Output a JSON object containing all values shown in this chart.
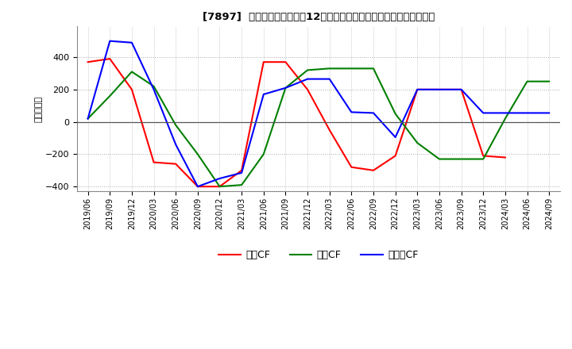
{
  "title": "[7897]  キャッシュフローの12か月移動合計の対前年同期増減額の推移",
  "ylabel": "（百万円）",
  "ylim": [
    -430,
    590
  ],
  "yticks": [
    -400,
    -200,
    0,
    200,
    400
  ],
  "background_color": "#ffffff",
  "grid_color": "#aaaaaa",
  "legend_labels": [
    "営業CF",
    "投資CF",
    "フリーCF"
  ],
  "legend_colors": [
    "#ff0000",
    "#008000",
    "#0000ff"
  ],
  "x_labels": [
    "2019/06",
    "2019/09",
    "2019/12",
    "2020/03",
    "2020/06",
    "2020/09",
    "2020/12",
    "2021/03",
    "2021/06",
    "2021/09",
    "2021/12",
    "2022/03",
    "2022/06",
    "2022/09",
    "2022/12",
    "2023/03",
    "2023/06",
    "2023/09",
    "2023/12",
    "2024/03",
    "2024/06",
    "2024/09"
  ],
  "operating_cf": [
    370,
    390,
    200,
    -250,
    -260,
    -400,
    -400,
    -300,
    370,
    370,
    200,
    -50,
    -280,
    -300,
    -210,
    200,
    200,
    200,
    -210,
    -220,
    null,
    null
  ],
  "investing_cf": [
    20,
    160,
    310,
    220,
    -20,
    -200,
    -400,
    -390,
    -200,
    210,
    320,
    330,
    330,
    330,
    50,
    -130,
    -230,
    -230,
    -230,
    20,
    250,
    250
  ],
  "free_cf": [
    20,
    500,
    490,
    200,
    -140,
    -400,
    -350,
    -315,
    170,
    210,
    265,
    265,
    60,
    55,
    -95,
    200,
    200,
    200,
    55,
    55,
    55,
    55
  ]
}
